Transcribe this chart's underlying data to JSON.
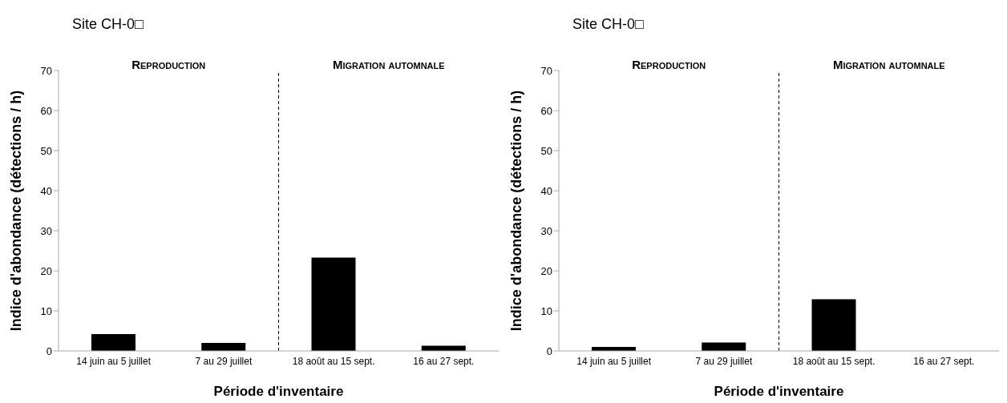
{
  "chart_data": [
    {
      "type": "bar",
      "title": "Site CH-0□",
      "xlabel": "Période d'inventaire",
      "ylabel": "Indice d'abondance (détections / h)",
      "categories": [
        "14 juin au 5 juillet",
        "7 au 29 juillet",
        "18 août au 15 sept.",
        "16 au 27 sept."
      ],
      "values": [
        4.2,
        2.0,
        23.3,
        1.3
      ],
      "color": "#000000",
      "ylim": [
        0,
        70
      ],
      "yticks": [
        0,
        10,
        20,
        30,
        40,
        50,
        60,
        70
      ],
      "grid": false,
      "annotations": [
        "Reproduction",
        "Migration automnale"
      ]
    },
    {
      "type": "bar",
      "title": "Site CH-0□",
      "xlabel": "Période d'inventaire",
      "ylabel": "Indice d'abondance (détections / h)",
      "categories": [
        "14 juin au 5 juillet",
        "7 au 29 juillet",
        "18 août au 15 sept.",
        "16 au 27 sept."
      ],
      "values": [
        1.0,
        2.1,
        12.9,
        0
      ],
      "color": "#000000",
      "ylim": [
        0,
        70
      ],
      "yticks": [
        0,
        10,
        20,
        30,
        40,
        50,
        60,
        70
      ],
      "grid": false,
      "annotations": [
        "Reproduction",
        "Migration automnale"
      ]
    }
  ]
}
